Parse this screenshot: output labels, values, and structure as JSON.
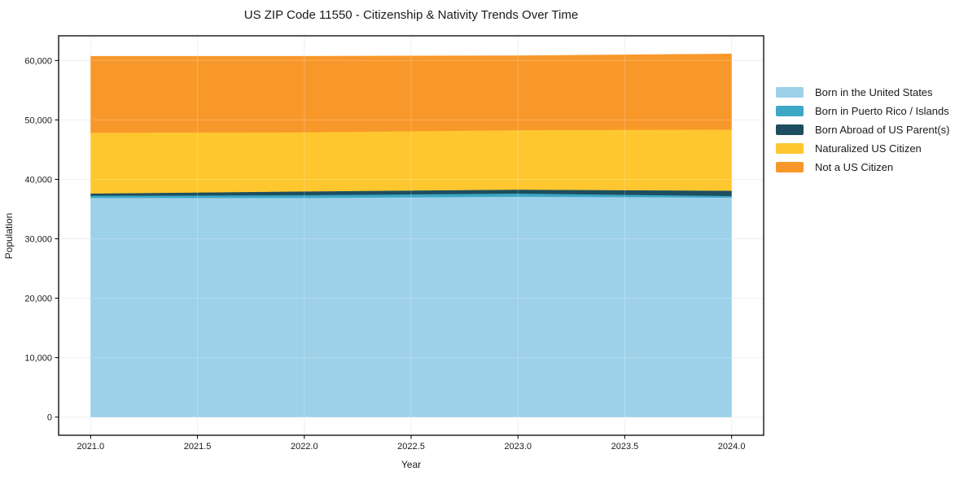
{
  "page": {
    "background": "#ffffff"
  },
  "chart_data": {
    "type": "area",
    "stacked": true,
    "title": "US ZIP Code 11550 - Citizenship & Nativity Trends Over Time",
    "xlabel": "Year",
    "ylabel": "Population",
    "grid": true,
    "legend_position": "right-outside",
    "x": [
      2021,
      2022,
      2023,
      2024
    ],
    "series": [
      {
        "name": "Born in the United States",
        "color": "#9dd1e9",
        "values": [
          36900,
          36900,
          37100,
          36950
        ]
      },
      {
        "name": "Born in Puerto Rico / Islands",
        "color": "#3da7c6",
        "values": [
          370,
          460,
          540,
          280
        ]
      },
      {
        "name": "Born Abroad of US Parent(s)",
        "color": "#1d4e5f",
        "values": [
          370,
          640,
          660,
          870
        ]
      },
      {
        "name": "Naturalized US Citizen",
        "color": "#fec72f",
        "values": [
          10260,
          9950,
          10000,
          10300
        ]
      },
      {
        "name": "Not a US Citizen",
        "color": "#f8982a",
        "values": [
          12800,
          12750,
          12500,
          12700
        ]
      }
    ],
    "totals": [
      60700,
      60700,
      60800,
      61100
    ],
    "xlim": [
      2020.85,
      2024.15
    ],
    "ylim": [
      -3055,
      64155
    ],
    "xticks": {
      "values": [
        2021.0,
        2021.5,
        2022.0,
        2022.5,
        2023.0,
        2023.5,
        2024.0
      ],
      "labels": [
        "2021.0",
        "2021.5",
        "2022.0",
        "2022.5",
        "2023.0",
        "2023.5",
        "2024.0"
      ]
    },
    "yticks": {
      "values": [
        0,
        10000,
        20000,
        30000,
        40000,
        50000,
        60000
      ],
      "labels": [
        "0",
        "10,000",
        "20,000",
        "30,000",
        "40,000",
        "50,000",
        "60,000"
      ]
    }
  },
  "style_colors": {
    "axis_spine": "#000000",
    "grid_line": "#ececec",
    "text": "#1a1a1a"
  }
}
